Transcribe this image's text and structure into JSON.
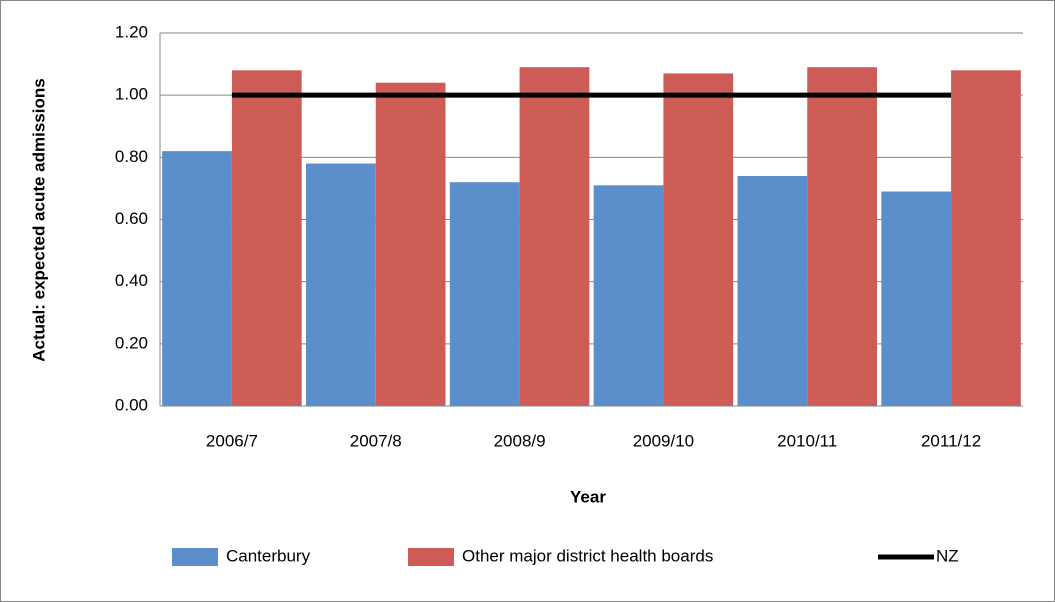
{
  "chart_data": {
    "type": "bar",
    "y_label": "Actual: expected acute admissions",
    "x_label": "Year",
    "categories": [
      "2006/7",
      "2007/8",
      "2008/9",
      "2009/10",
      "2010/11",
      "2011/12"
    ],
    "series": [
      {
        "name": "Canterbury",
        "type": "bar",
        "color": "#5b8fcb",
        "values": [
          0.82,
          0.78,
          0.72,
          0.71,
          0.74,
          0.69
        ]
      },
      {
        "name": "Other major district health boards",
        "type": "bar",
        "color": "#cd5c57",
        "values": [
          1.08,
          1.04,
          1.09,
          1.07,
          1.09,
          1.08
        ]
      },
      {
        "name": "NZ",
        "type": "line",
        "color": "#000000",
        "values": [
          1.0,
          1.0,
          1.0,
          1.0,
          1.0,
          1.0
        ]
      }
    ],
    "ylim": [
      0,
      1.2
    ],
    "yticks": [
      {
        "value": 0,
        "label": "0.00"
      },
      {
        "value": 0.2,
        "label": "0.20"
      },
      {
        "value": 0.4,
        "label": "0.40"
      },
      {
        "value": 0.6,
        "label": "0.60"
      },
      {
        "value": 0.8,
        "label": "0.80"
      },
      {
        "value": 1.0,
        "label": "1.00"
      },
      {
        "value": 1.2,
        "label": "1.20"
      }
    ],
    "grid": true,
    "legend": "bottom"
  }
}
